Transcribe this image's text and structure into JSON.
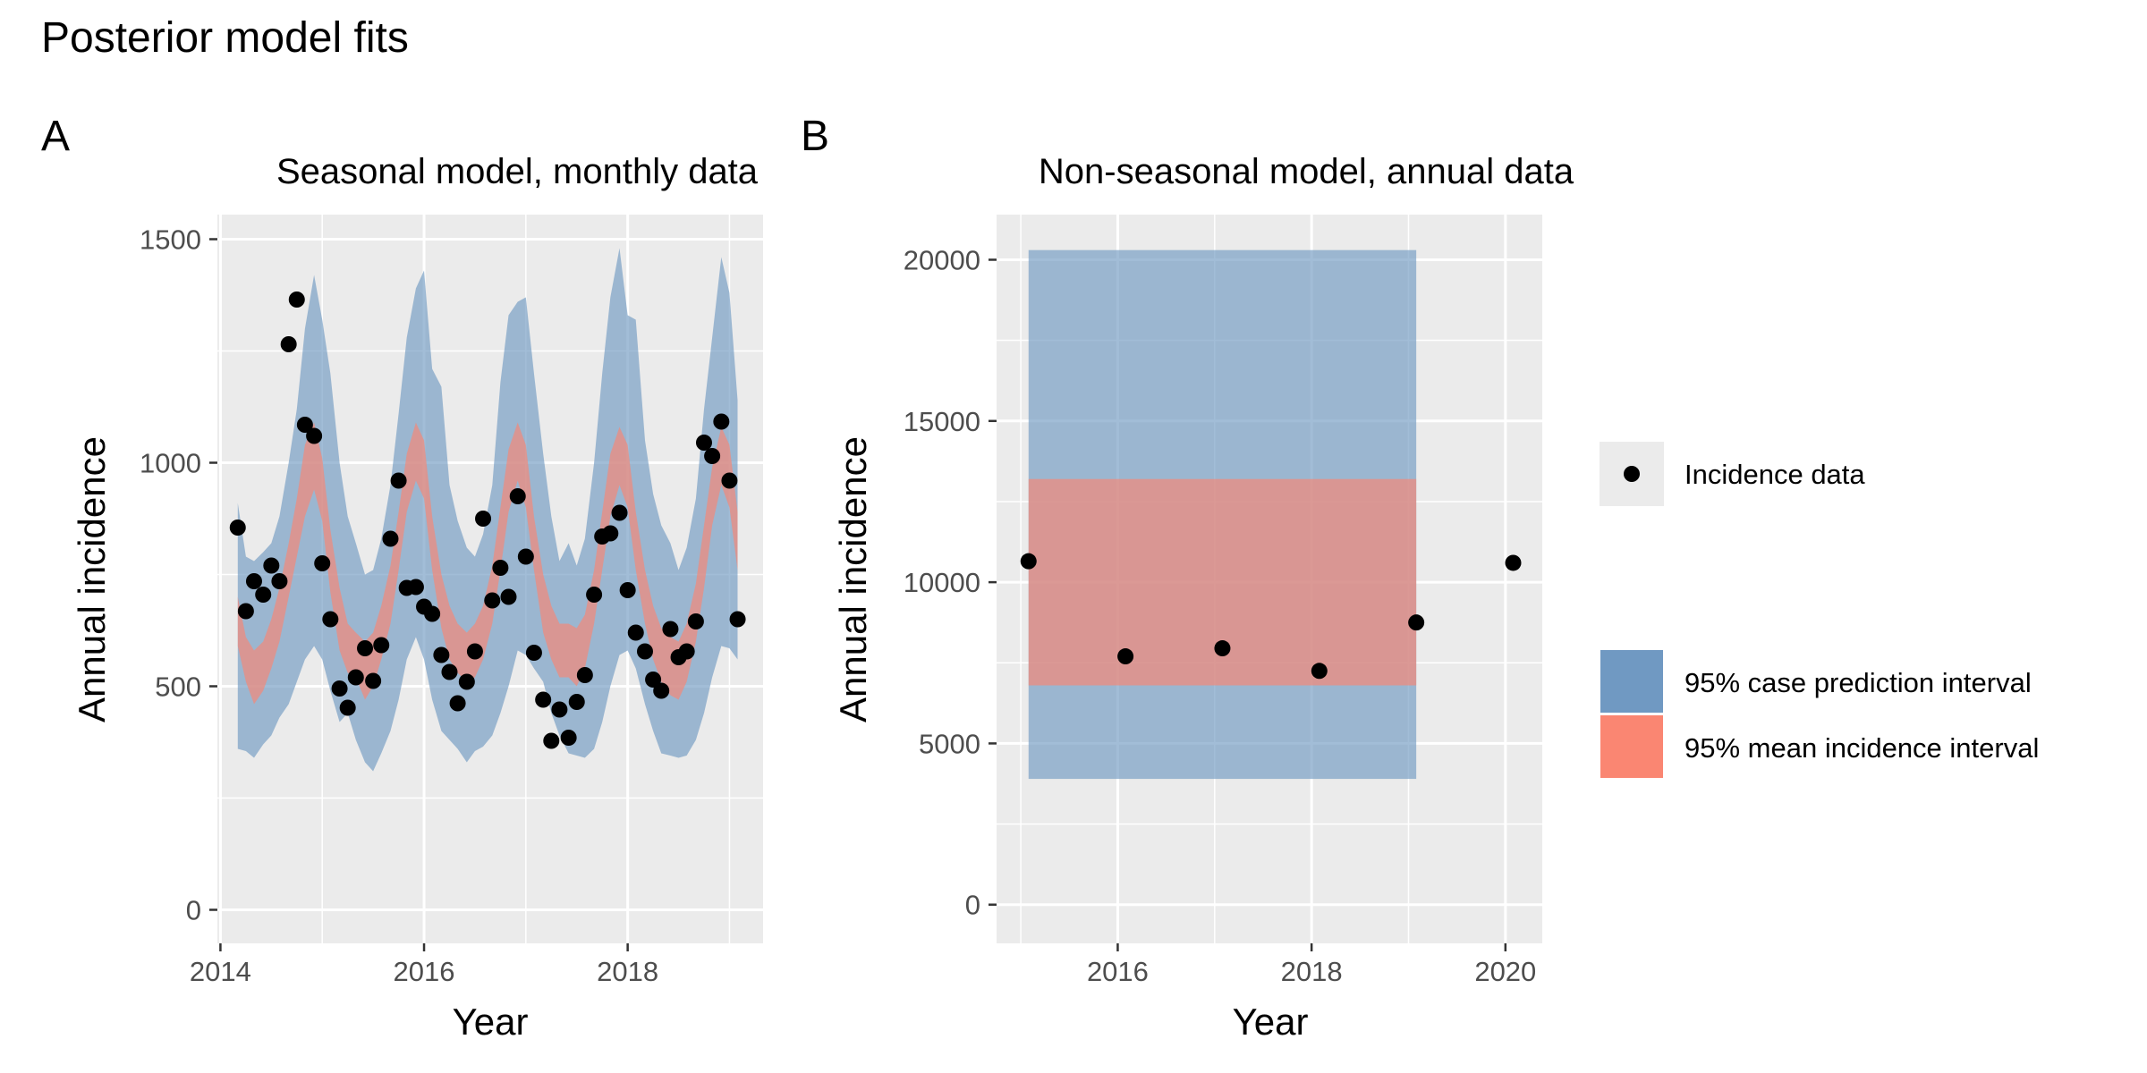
{
  "figure": {
    "title": "Posterior model fits"
  },
  "legend": {
    "points_label": "Incidence data",
    "fill_items": [
      {
        "label": "95% case prediction interval",
        "color": "#7099c2"
      },
      {
        "label": "95% mean incidence interval",
        "color": "#fa8672"
      }
    ]
  },
  "colors": {
    "panel_bg": "#ebebeb",
    "grid": "#ffffff",
    "prediction_band": "#7099c2",
    "mean_band": "#fa8672",
    "points": "#000000"
  },
  "chart_data": [
    {
      "tag": "A",
      "type": "area",
      "title": "Seasonal model, monthly data",
      "xlabel": "Year",
      "ylabel": "Annual incidence",
      "xlim": [
        2013.97,
        2019.33
      ],
      "ylim": [
        -75,
        1555
      ],
      "x_ticks": [
        2014,
        2016,
        2018
      ],
      "y_ticks": [
        0,
        500,
        1000,
        1500
      ],
      "grid": true,
      "x": [
        2014.17,
        2014.25,
        2014.33,
        2014.42,
        2014.5,
        2014.58,
        2014.67,
        2014.75,
        2014.83,
        2014.92,
        2015.0,
        2015.08,
        2015.17,
        2015.25,
        2015.33,
        2015.42,
        2015.5,
        2015.58,
        2015.67,
        2015.75,
        2015.83,
        2015.92,
        2016.0,
        2016.08,
        2016.17,
        2016.25,
        2016.33,
        2016.42,
        2016.5,
        2016.58,
        2016.67,
        2016.75,
        2016.83,
        2016.92,
        2017.0,
        2017.08,
        2017.17,
        2017.25,
        2017.33,
        2017.42,
        2017.5,
        2017.58,
        2017.67,
        2017.75,
        2017.83,
        2017.92,
        2018.0,
        2018.08,
        2018.17,
        2018.25,
        2018.33,
        2018.42,
        2018.5,
        2018.58,
        2018.67,
        2018.75,
        2018.83,
        2018.92,
        2019.0,
        2019.08
      ],
      "series": [
        {
          "name": "95% case prediction interval",
          "role": "band",
          "lower": [
            360,
            355,
            340,
            370,
            390,
            430,
            460,
            510,
            560,
            590,
            560,
            490,
            420,
            440,
            380,
            330,
            310,
            350,
            400,
            470,
            560,
            610,
            560,
            470,
            400,
            380,
            360,
            330,
            355,
            365,
            390,
            440,
            500,
            580,
            570,
            540,
            510,
            440,
            390,
            350,
            345,
            340,
            360,
            420,
            500,
            570,
            580,
            540,
            460,
            400,
            350,
            345,
            340,
            345,
            380,
            440,
            520,
            590,
            585,
            560
          ],
          "upper": [
            910,
            790,
            780,
            800,
            820,
            880,
            1000,
            1120,
            1300,
            1420,
            1320,
            1200,
            1000,
            880,
            820,
            750,
            760,
            830,
            950,
            1110,
            1280,
            1390,
            1430,
            1210,
            1170,
            950,
            870,
            810,
            790,
            840,
            950,
            1180,
            1330,
            1360,
            1370,
            1200,
            1020,
            880,
            780,
            820,
            770,
            830,
            1000,
            1200,
            1370,
            1480,
            1330,
            1320,
            1050,
            930,
            860,
            820,
            760,
            810,
            920,
            1120,
            1280,
            1460,
            1380,
            1140
          ]
        },
        {
          "name": "95% mean incidence interval",
          "role": "band",
          "lower": [
            590,
            510,
            460,
            490,
            540,
            600,
            700,
            790,
            880,
            940,
            870,
            710,
            580,
            530,
            520,
            470,
            500,
            560,
            640,
            760,
            890,
            960,
            920,
            760,
            630,
            560,
            530,
            510,
            520,
            560,
            640,
            760,
            890,
            960,
            900,
            760,
            620,
            560,
            520,
            520,
            500,
            540,
            640,
            760,
            880,
            950,
            900,
            760,
            640,
            560,
            510,
            480,
            470,
            510,
            600,
            720,
            860,
            950,
            900,
            760
          ],
          "upper": [
            700,
            610,
            580,
            600,
            650,
            720,
            820,
            920,
            1040,
            1090,
            1010,
            850,
            720,
            640,
            620,
            600,
            620,
            680,
            770,
            890,
            1020,
            1090,
            1050,
            880,
            750,
            680,
            640,
            620,
            640,
            680,
            770,
            900,
            1030,
            1090,
            1040,
            880,
            750,
            680,
            640,
            640,
            630,
            660,
            760,
            890,
            1020,
            1080,
            1040,
            890,
            760,
            680,
            630,
            610,
            600,
            640,
            730,
            860,
            990,
            1080,
            1040,
            890
          ]
        },
        {
          "name": "Incidence data",
          "role": "points",
          "values": [
            855,
            668,
            735,
            705,
            770,
            735,
            1265,
            1365,
            1085,
            1060,
            775,
            650,
            495,
            452,
            520,
            585,
            512,
            592,
            830,
            960,
            720,
            722,
            678,
            662,
            570,
            532,
            462,
            510,
            578,
            875,
            692,
            765,
            700,
            925,
            790,
            575,
            470,
            378,
            448,
            385,
            465,
            525,
            705,
            835,
            842,
            888,
            715,
            620,
            578,
            515,
            490,
            628,
            565,
            578,
            645,
            1045,
            1015,
            1092,
            960,
            650
          ]
        }
      ]
    },
    {
      "tag": "B",
      "type": "area",
      "title": "Non-seasonal model, annual data",
      "xlabel": "Year",
      "ylabel": "Annual incidence",
      "xlim": [
        2014.75,
        2020.38
      ],
      "ylim": [
        -1200,
        21400
      ],
      "x_ticks": [
        2016,
        2018,
        2020
      ],
      "y_ticks": [
        0,
        5000,
        10000,
        15000,
        20000
      ],
      "grid": true,
      "x": [
        2015.08,
        2016.08,
        2017.08,
        2018.08,
        2019.08,
        2020.08
      ],
      "series": [
        {
          "name": "95% case prediction interval",
          "role": "band",
          "x_range": [
            2015.08,
            2019.08
          ],
          "lower": 3900,
          "upper": 20300
        },
        {
          "name": "95% mean incidence interval",
          "role": "band",
          "x_range": [
            2015.08,
            2019.08
          ],
          "lower": 6800,
          "upper": 13200
        },
        {
          "name": "Incidence data",
          "role": "points",
          "values": [
            10650,
            7700,
            7950,
            7250,
            8750,
            10600
          ]
        }
      ]
    }
  ]
}
